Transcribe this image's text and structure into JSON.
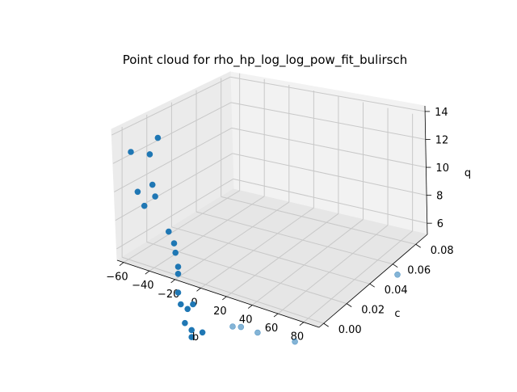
{
  "chart_data": {
    "type": "scatter",
    "projection": "3d",
    "title": "Point cloud for rho_hp_log_log_pow_fit_bulirsch",
    "xlabel": "b",
    "ylabel": "c",
    "zlabel": "q",
    "xlim": [
      -65,
      92
    ],
    "ylim": [
      -0.004,
      0.09
    ],
    "zlim": [
      5.2,
      14.4
    ],
    "xticks": [
      "−60",
      "−40",
      "−20",
      "0",
      "20",
      "40",
      "60",
      "80"
    ],
    "yticks": [
      "0.00",
      "0.02",
      "0.04",
      "0.06",
      "0.08"
    ],
    "zticks": [
      "6",
      "8",
      "10",
      "12",
      "14"
    ],
    "grid": true,
    "point_color": "#1f77b4",
    "points": [
      {
        "b": -60,
        "c": 0.05,
        "q": 12.8
      },
      {
        "b": -46,
        "c": 0.05,
        "q": 12.7
      },
      {
        "b": -40,
        "c": 0.05,
        "q": 13.4
      },
      {
        "b": -55,
        "c": 0.05,
        "q": 11.1
      },
      {
        "b": -50,
        "c": 0.05,
        "q": 10.5
      },
      {
        "b": -44,
        "c": 0.05,
        "q": 11.4
      },
      {
        "b": -42,
        "c": 0.05,
        "q": 10.9
      },
      {
        "b": -32,
        "c": 0.05,
        "q": 9.4
      },
      {
        "b": -28,
        "c": 0.05,
        "q": 8.9
      },
      {
        "b": -27,
        "c": 0.05,
        "q": 8.5
      },
      {
        "b": -25,
        "c": 0.05,
        "q": 7.9
      },
      {
        "b": -25,
        "c": 0.05,
        "q": 7.6
      },
      {
        "b": -25,
        "c": 0.05,
        "q": 6.8
      },
      {
        "b": -23,
        "c": 0.05,
        "q": 6.3
      },
      {
        "b": -18,
        "c": 0.05,
        "q": 6.1
      },
      {
        "b": -14,
        "c": 0.05,
        "q": 6.3
      },
      {
        "b": -20,
        "c": 0.05,
        "q": 5.5
      },
      {
        "b": -15,
        "c": 0.05,
        "q": 5.2
      },
      {
        "b": -15,
        "c": 0.05,
        "q": 4.9
      },
      {
        "b": -7,
        "c": 0.05,
        "q": 5.1
      },
      {
        "b": 10,
        "c": 0.05,
        "q": 5.4
      },
      {
        "b": 14,
        "c": 0.05,
        "q": 5.4
      },
      {
        "b": 22,
        "c": 0.05,
        "q": 5.2
      },
      {
        "b": 40,
        "c": 0.05,
        "q": 4.9
      },
      {
        "b": 80,
        "c": 0.08,
        "q": 5.8
      }
    ]
  }
}
